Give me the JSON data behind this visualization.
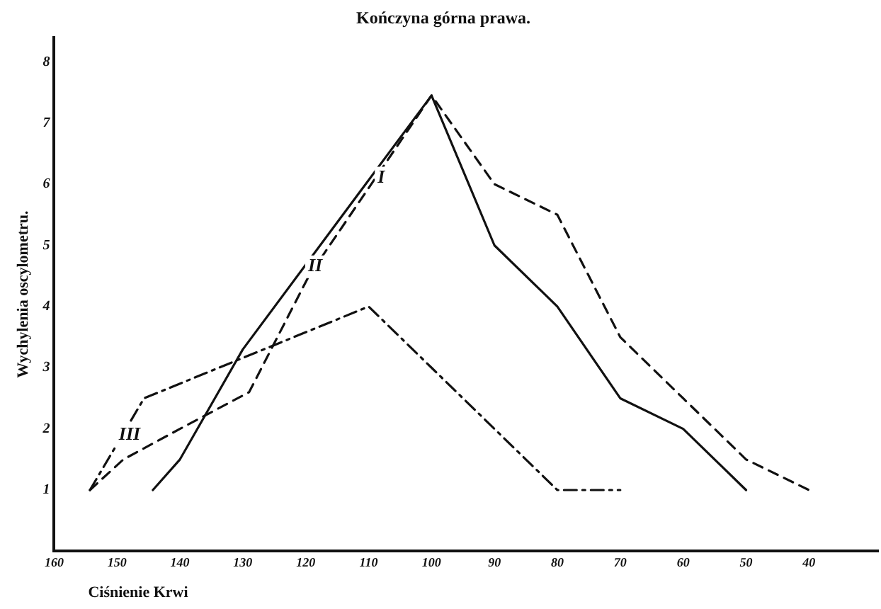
{
  "chart_data": {
    "type": "line",
    "title": "Kończyna górna prawa.",
    "xlabel": "Ciśnienie Krwi",
    "ylabel": "Wychylenia oscylometru.",
    "xlim": [
      160,
      29
    ],
    "xticks": [
      160,
      150,
      140,
      130,
      120,
      110,
      100,
      90,
      80,
      70,
      60,
      50,
      40
    ],
    "ylim": [
      0,
      8.4
    ],
    "yticks": [
      1,
      2,
      3,
      4,
      5,
      6,
      7,
      8
    ],
    "grid": false,
    "legend": false,
    "marker": "none",
    "series": [
      {
        "color": "#111111",
        "line_style": "solid",
        "x": [
          144.3,
          140,
          130,
          100,
          90,
          80,
          70,
          60,
          50
        ],
        "values": [
          1,
          1.5,
          3.3,
          7.45,
          5,
          4,
          2.5,
          2,
          1
        ]
      },
      {
        "color": "#111111",
        "line_style": "dashed",
        "x": [
          154.3,
          149,
          140,
          129,
          119.5,
          100,
          90,
          80,
          70,
          60,
          50,
          40
        ],
        "values": [
          1,
          1.5,
          2,
          2.6,
          4.5,
          7.45,
          6,
          5.5,
          3.5,
          2.5,
          1.5,
          1
        ]
      },
      {
        "color": "#111111",
        "line_style": "dashdot",
        "x": [
          154.3,
          145.7,
          110,
          100,
          90,
          80,
          70
        ],
        "values": [
          1,
          2.5,
          4,
          3,
          2,
          1,
          1
        ]
      }
    ],
    "annotations": [
      {
        "text": "I",
        "x": 108,
        "y": 6.1
      },
      {
        "text": "II",
        "x": 118.5,
        "y": 4.65
      },
      {
        "text": "III",
        "x": 148,
        "y": 1.9
      }
    ]
  }
}
